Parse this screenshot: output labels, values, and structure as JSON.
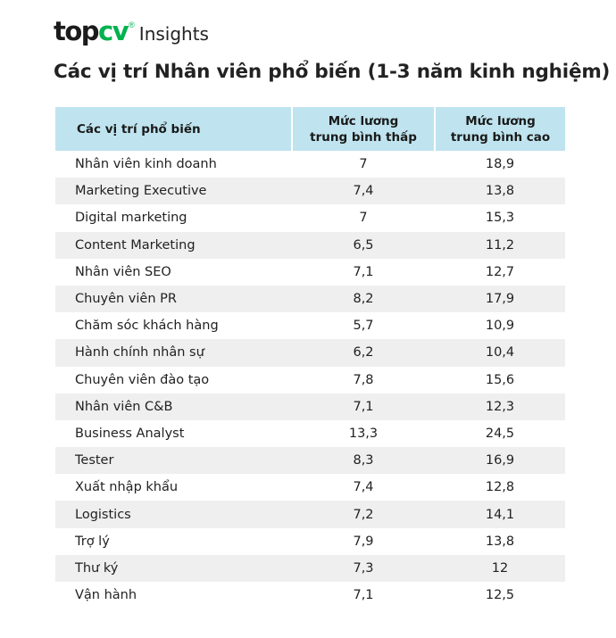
{
  "brand": {
    "mark_left": "top",
    "mark_right": "cv",
    "registered": "®",
    "suffix": "Insights"
  },
  "title": "Các vị trí Nhân viên phổ biến (1-3 năm kinh nghiệm)",
  "table": {
    "headers": {
      "position": "Các vị trí phổ biến",
      "low_line1": "Mức lương",
      "low_line2": "trung bình thấp",
      "high_line1": "Mức lương",
      "high_line2": "trung bình cao"
    },
    "rows": [
      {
        "position": "Nhân viên kinh doanh",
        "low": "7",
        "high": "18,9"
      },
      {
        "position": "Marketing Executive",
        "low": "7,4",
        "high": "13,8"
      },
      {
        "position": "Digital marketing",
        "low": "7",
        "high": "15,3"
      },
      {
        "position": "Content Marketing",
        "low": "6,5",
        "high": "11,2"
      },
      {
        "position": "Nhân viên SEO",
        "low": "7,1",
        "high": "12,7"
      },
      {
        "position": "Chuyên viên PR",
        "low": "8,2",
        "high": "17,9"
      },
      {
        "position": "Chăm sóc khách hàng",
        "low": "5,7",
        "high": "10,9"
      },
      {
        "position": "Hành chính nhân sự",
        "low": "6,2",
        "high": "10,4"
      },
      {
        "position": "Chuyên viên đào tạo",
        "low": "7,8",
        "high": "15,6"
      },
      {
        "position": "Nhân viên C&B",
        "low": "7,1",
        "high": "12,3"
      },
      {
        "position": "Business Analyst",
        "low": "13,3",
        "high": "24,5"
      },
      {
        "position": "Tester",
        "low": "8,3",
        "high": "16,9"
      },
      {
        "position": "Xuất nhập khẩu",
        "low": "7,4",
        "high": "12,8"
      },
      {
        "position": "Logistics",
        "low": "7,2",
        "high": "14,1"
      },
      {
        "position": "Trợ lý",
        "low": "7,9",
        "high": "13,8"
      },
      {
        "position": "Thư ký",
        "low": "7,3",
        "high": "12"
      },
      {
        "position": "Vận hành",
        "low": "7,1",
        "high": "12,5"
      }
    ]
  },
  "colors": {
    "brand_green": "#00b14f",
    "header_bg": "#bfe4ef",
    "stripe_bg": "#efefef"
  }
}
